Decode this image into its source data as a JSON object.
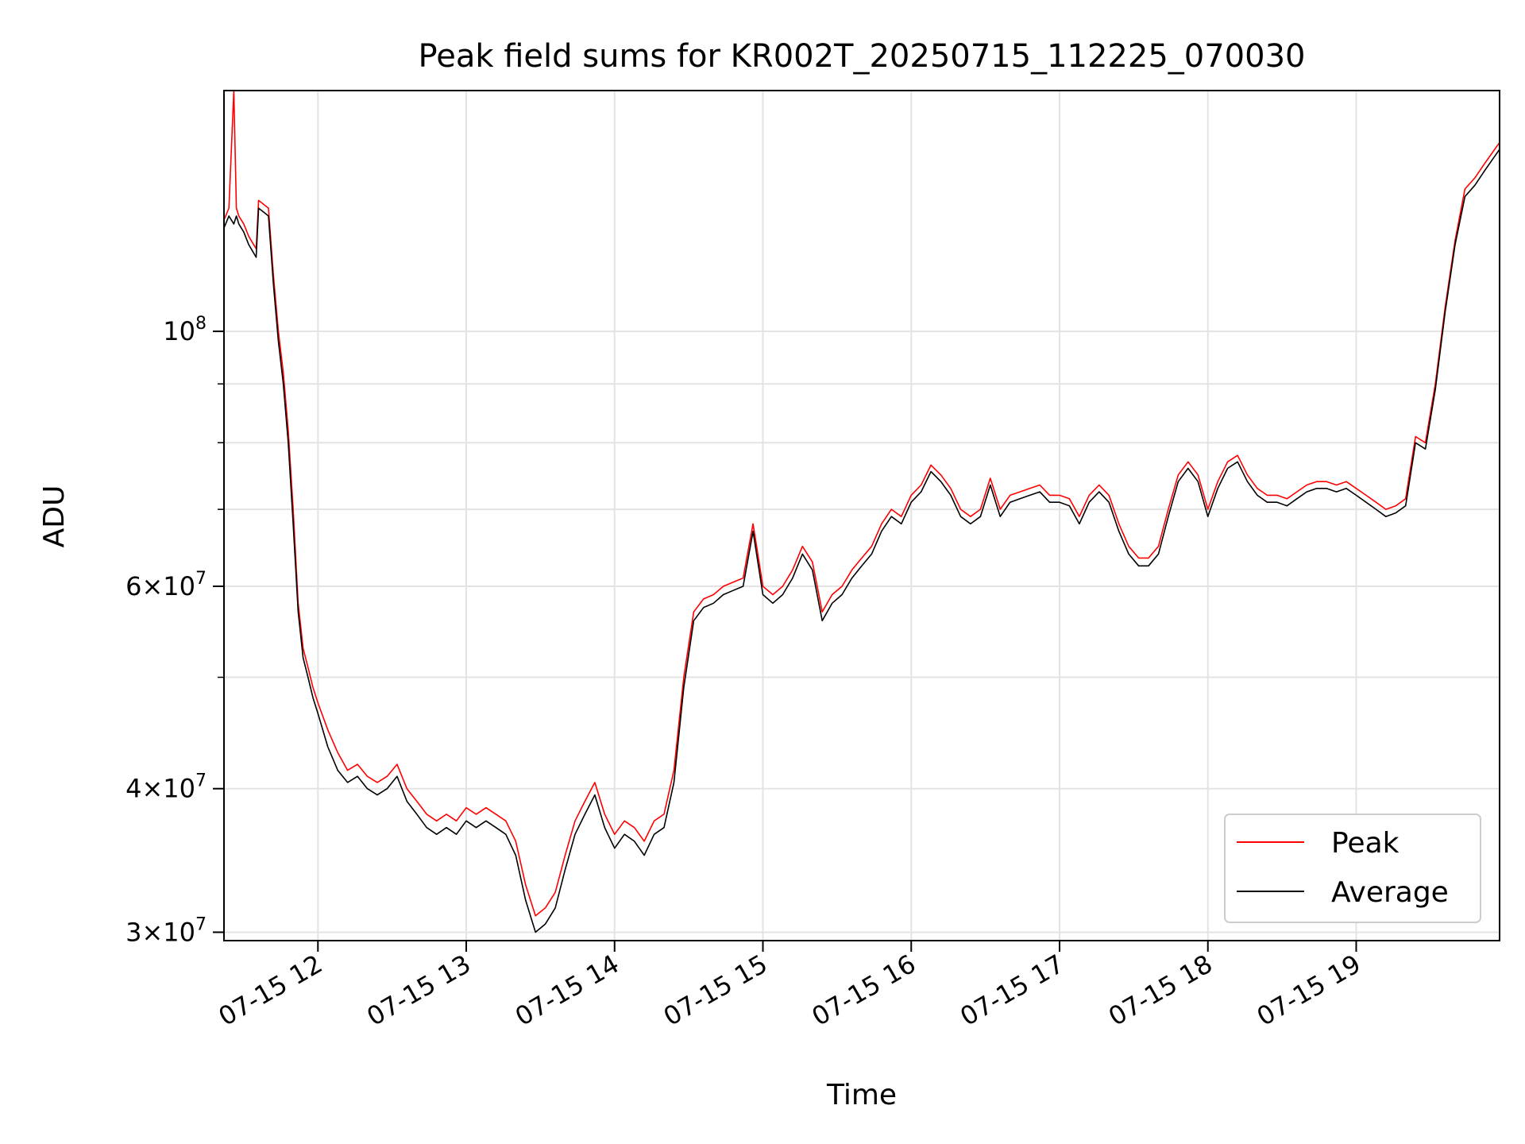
{
  "chart_data": {
    "type": "line",
    "title": "Peak field sums for KR002T_20250715_112225_070030",
    "xlabel": "Time",
    "ylabel": "ADU",
    "xlim": [
      "07-15 11:22",
      "07-15 19:58"
    ],
    "ylim": [
      29500000,
      162000000
    ],
    "yscale": "log",
    "grid": true,
    "legend_position": "lower-right",
    "x_tick_labels": [
      "07-15 12",
      "07-15 13",
      "07-15 14",
      "07-15 15",
      "07-15 16",
      "07-15 17",
      "07-15 18",
      "07-15 19"
    ],
    "y_tick_labels": [
      {
        "value": 30000000,
        "base": "3",
        "exp": "7",
        "label": "3 × 10^7"
      },
      {
        "value": 40000000,
        "base": "4",
        "exp": "7",
        "label": "4 × 10^7"
      },
      {
        "value": 60000000,
        "base": "6",
        "exp": "7",
        "label": "6 × 10^7"
      },
      {
        "value": 100000000,
        "base": "",
        "exp": "8",
        "label": "10^8"
      }
    ],
    "colors": {
      "peak": "#ff0000",
      "average": "#000000"
    },
    "series": [
      {
        "name": "Peak",
        "x": [
          "11:22",
          "11:24",
          "11:26",
          "11:27",
          "11:28",
          "11:30",
          "11:32",
          "11:34",
          "11:35",
          "11:36",
          "11:38",
          "11:40",
          "11:42",
          "11:44",
          "11:46",
          "11:48",
          "11:50",
          "11:52",
          "11:54",
          "11:56",
          "11:58",
          "12:00",
          "12:04",
          "12:08",
          "12:12",
          "12:16",
          "12:20",
          "12:24",
          "12:28",
          "12:32",
          "12:36",
          "12:40",
          "12:44",
          "12:48",
          "12:52",
          "12:56",
          "13:00",
          "13:04",
          "13:08",
          "13:12",
          "13:16",
          "13:20",
          "13:24",
          "13:28",
          "13:32",
          "13:36",
          "13:40",
          "13:44",
          "13:48",
          "13:52",
          "13:56",
          "14:00",
          "14:04",
          "14:08",
          "14:12",
          "14:16",
          "14:20",
          "14:24",
          "14:28",
          "14:32",
          "14:36",
          "14:40",
          "14:44",
          "14:48",
          "14:52",
          "14:56",
          "15:00",
          "15:04",
          "15:08",
          "15:12",
          "15:16",
          "15:20",
          "15:24",
          "15:28",
          "15:32",
          "15:36",
          "15:40",
          "15:44",
          "15:48",
          "15:52",
          "15:56",
          "16:00",
          "16:04",
          "16:08",
          "16:12",
          "16:16",
          "16:20",
          "16:24",
          "16:28",
          "16:32",
          "16:36",
          "16:40",
          "16:44",
          "16:48",
          "16:52",
          "16:56",
          "17:00",
          "17:04",
          "17:08",
          "17:12",
          "17:16",
          "17:20",
          "17:24",
          "17:28",
          "17:32",
          "17:36",
          "17:40",
          "17:44",
          "17:48",
          "17:52",
          "17:56",
          "18:00",
          "18:04",
          "18:08",
          "18:12",
          "18:16",
          "18:20",
          "18:24",
          "18:28",
          "18:32",
          "18:36",
          "18:40",
          "18:44",
          "18:48",
          "18:52",
          "18:56",
          "19:00",
          "19:04",
          "19:08",
          "19:12",
          "19:16",
          "19:20",
          "19:24",
          "19:28",
          "19:32",
          "19:36",
          "19:40",
          "19:44",
          "19:48",
          "19:52",
          "19:56",
          "19:58"
        ],
        "values": [
          125000000,
          128000000,
          162000000,
          128000000,
          126000000,
          124000000,
          121000000,
          119000000,
          118000000,
          130000000,
          129000000,
          128000000,
          112000000,
          100000000,
          92000000,
          82000000,
          70000000,
          58000000,
          53000000,
          51000000,
          49000000,
          47500000,
          45000000,
          43000000,
          41500000,
          42000000,
          41000000,
          40500000,
          41000000,
          42000000,
          40000000,
          39000000,
          38000000,
          37500000,
          38000000,
          37500000,
          38500000,
          38000000,
          38500000,
          38000000,
          37500000,
          36000000,
          33000000,
          31000000,
          31500000,
          32500000,
          35000000,
          37500000,
          39000000,
          40500000,
          38000000,
          36500000,
          37500000,
          37000000,
          36000000,
          37500000,
          38000000,
          41500000,
          50000000,
          57000000,
          58500000,
          59000000,
          60000000,
          60500000,
          61000000,
          68000000,
          60000000,
          59000000,
          60000000,
          62000000,
          65000000,
          63000000,
          57000000,
          59000000,
          60000000,
          62000000,
          63500000,
          65000000,
          68000000,
          70000000,
          69000000,
          72000000,
          73500000,
          76500000,
          75000000,
          73000000,
          70000000,
          69000000,
          70000000,
          74500000,
          70000000,
          72000000,
          72500000,
          73000000,
          73500000,
          72000000,
          72000000,
          71500000,
          69000000,
          72000000,
          73500000,
          72000000,
          68000000,
          65000000,
          63500000,
          63500000,
          65000000,
          70000000,
          75000000,
          77000000,
          75000000,
          70000000,
          74000000,
          77000000,
          78000000,
          75000000,
          73000000,
          72000000,
          72000000,
          71500000,
          72500000,
          73500000,
          74000000,
          74000000,
          73500000,
          74000000,
          73000000,
          72000000,
          71000000,
          70000000,
          70500000,
          71500000,
          81000000,
          80000000,
          90000000,
          105000000,
          120000000,
          133000000,
          136000000,
          140000000,
          144000000,
          146000000
        ]
      },
      {
        "name": "Average",
        "x": [
          "11:22",
          "11:24",
          "11:26",
          "11:27",
          "11:28",
          "11:30",
          "11:32",
          "11:34",
          "11:35",
          "11:36",
          "11:38",
          "11:40",
          "11:42",
          "11:44",
          "11:46",
          "11:48",
          "11:50",
          "11:52",
          "11:54",
          "11:56",
          "11:58",
          "12:00",
          "12:04",
          "12:08",
          "12:12",
          "12:16",
          "12:20",
          "12:24",
          "12:28",
          "12:32",
          "12:36",
          "12:40",
          "12:44",
          "12:48",
          "12:52",
          "12:56",
          "13:00",
          "13:04",
          "13:08",
          "13:12",
          "13:16",
          "13:20",
          "13:24",
          "13:28",
          "13:32",
          "13:36",
          "13:40",
          "13:44",
          "13:48",
          "13:52",
          "13:56",
          "14:00",
          "14:04",
          "14:08",
          "14:12",
          "14:16",
          "14:20",
          "14:24",
          "14:28",
          "14:32",
          "14:36",
          "14:40",
          "14:44",
          "14:48",
          "14:52",
          "14:56",
          "15:00",
          "15:04",
          "15:08",
          "15:12",
          "15:16",
          "15:20",
          "15:24",
          "15:28",
          "15:32",
          "15:36",
          "15:40",
          "15:44",
          "15:48",
          "15:52",
          "15:56",
          "16:00",
          "16:04",
          "16:08",
          "16:12",
          "16:16",
          "16:20",
          "16:24",
          "16:28",
          "16:32",
          "16:36",
          "16:40",
          "16:44",
          "16:48",
          "16:52",
          "16:56",
          "17:00",
          "17:04",
          "17:08",
          "17:12",
          "17:16",
          "17:20",
          "17:24",
          "17:28",
          "17:32",
          "17:36",
          "17:40",
          "17:44",
          "17:48",
          "17:52",
          "17:56",
          "18:00",
          "18:04",
          "18:08",
          "18:12",
          "18:16",
          "18:20",
          "18:24",
          "18:28",
          "18:32",
          "18:36",
          "18:40",
          "18:44",
          "18:48",
          "18:52",
          "18:56",
          "19:00",
          "19:04",
          "19:08",
          "19:12",
          "19:16",
          "19:20",
          "19:24",
          "19:28",
          "19:32",
          "19:36",
          "19:40",
          "19:44",
          "19:48",
          "19:52",
          "19:56",
          "19:58"
        ],
        "values": [
          123000000,
          126000000,
          124000000,
          126000000,
          124000000,
          122000000,
          119000000,
          117000000,
          116000000,
          128000000,
          127000000,
          126000000,
          110000000,
          98000000,
          90000000,
          80000000,
          68000000,
          57000000,
          52000000,
          50000000,
          48000000,
          46500000,
          43500000,
          41500000,
          40500000,
          41000000,
          40000000,
          39500000,
          40000000,
          41000000,
          39000000,
          38000000,
          37000000,
          36500000,
          37000000,
          36500000,
          37500000,
          37000000,
          37500000,
          37000000,
          36500000,
          35000000,
          32000000,
          30000000,
          30500000,
          31500000,
          34000000,
          36500000,
          38000000,
          39500000,
          37000000,
          35500000,
          36500000,
          36000000,
          35000000,
          36500000,
          37000000,
          40500000,
          49000000,
          56000000,
          57500000,
          58000000,
          59000000,
          59500000,
          60000000,
          67000000,
          59000000,
          58000000,
          59000000,
          61000000,
          64000000,
          62000000,
          56000000,
          58000000,
          59000000,
          61000000,
          62500000,
          64000000,
          67000000,
          69000000,
          68000000,
          71000000,
          72500000,
          75500000,
          74000000,
          72000000,
          69000000,
          68000000,
          69000000,
          73500000,
          69000000,
          71000000,
          71500000,
          72000000,
          72500000,
          71000000,
          71000000,
          70500000,
          68000000,
          71000000,
          72500000,
          71000000,
          67000000,
          64000000,
          62500000,
          62500000,
          64000000,
          69000000,
          74000000,
          76000000,
          74000000,
          69000000,
          73000000,
          76000000,
          77000000,
          74000000,
          72000000,
          71000000,
          71000000,
          70500000,
          71500000,
          72500000,
          73000000,
          73000000,
          72500000,
          73000000,
          72000000,
          71000000,
          70000000,
          69000000,
          69500000,
          70500000,
          80000000,
          79000000,
          89000000,
          104000000,
          119000000,
          131000000,
          134000000,
          138000000,
          142000000,
          144000000
        ]
      }
    ]
  }
}
